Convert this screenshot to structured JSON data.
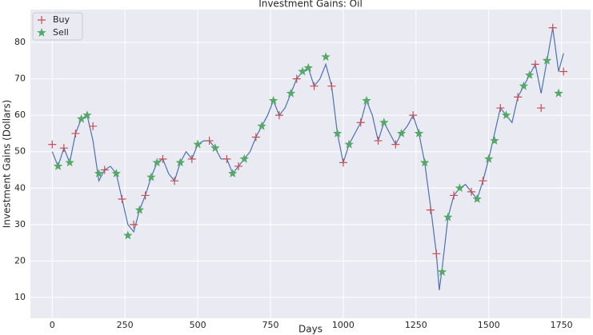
{
  "chart_data": {
    "type": "line",
    "title": "Investment Gains:  Oil",
    "x_label": "Days",
    "y_label": "Investment Gains (Dollars)",
    "line": {
      "color": "#4c72b0",
      "x": [
        0,
        20,
        40,
        60,
        80,
        100,
        120,
        140,
        160,
        180,
        200,
        220,
        240,
        260,
        280,
        300,
        320,
        340,
        360,
        380,
        400,
        420,
        440,
        460,
        480,
        500,
        520,
        540,
        560,
        580,
        600,
        620,
        640,
        660,
        680,
        700,
        720,
        740,
        760,
        780,
        800,
        820,
        840,
        860,
        880,
        900,
        920,
        940,
        960,
        980,
        1000,
        1020,
        1040,
        1060,
        1080,
        1100,
        1120,
        1140,
        1160,
        1180,
        1200,
        1220,
        1240,
        1260,
        1280,
        1300,
        1320,
        1330,
        1340,
        1360,
        1380,
        1400,
        1420,
        1440,
        1460,
        1480,
        1500,
        1520,
        1540,
        1560,
        1580,
        1600,
        1620,
        1640,
        1660,
        1680,
        1700,
        1720,
        1740,
        1757
      ],
      "values": [
        50,
        46,
        51,
        47,
        55,
        59,
        60,
        53,
        42,
        45,
        46,
        44,
        37,
        30,
        28,
        34,
        38,
        43,
        47,
        48,
        44,
        42,
        47,
        50,
        48,
        52,
        53,
        53,
        51,
        48,
        48,
        44,
        46,
        48,
        50,
        54,
        57,
        60,
        64,
        60,
        62,
        66,
        70,
        72,
        73,
        68,
        70,
        74,
        68,
        55,
        47,
        52,
        55,
        58,
        64,
        60,
        53,
        58,
        55,
        52,
        55,
        57,
        60,
        55,
        47,
        35,
        22,
        12,
        18,
        32,
        38,
        40,
        41,
        39,
        37,
        42,
        48,
        55,
        62,
        60,
        58,
        65,
        68,
        71,
        74,
        66,
        75,
        84,
        72,
        77
      ]
    },
    "series": [
      {
        "name": "Buy",
        "color": "#c44e52",
        "marker": "plus",
        "x": [
          0,
          40,
          80,
          140,
          180,
          240,
          280,
          320,
          380,
          420,
          480,
          540,
          600,
          640,
          700,
          780,
          840,
          900,
          960,
          1000,
          1060,
          1120,
          1180,
          1240,
          1300,
          1320,
          1380,
          1440,
          1480,
          1540,
          1600,
          1660,
          1680,
          1720,
          1757
        ],
        "values": [
          52,
          51,
          55,
          57,
          45,
          37,
          30,
          38,
          48,
          42,
          48,
          53,
          48,
          46,
          54,
          60,
          70,
          68,
          68,
          47,
          58,
          53,
          52,
          60,
          34,
          22,
          38,
          39,
          42,
          62,
          65,
          74,
          62,
          84,
          72
        ]
      },
      {
        "name": "Sell",
        "color": "#55a868",
        "marker": "star",
        "x": [
          20,
          60,
          100,
          120,
          160,
          220,
          260,
          300,
          340,
          360,
          440,
          500,
          560,
          620,
          660,
          720,
          760,
          820,
          860,
          880,
          940,
          980,
          1020,
          1080,
          1140,
          1200,
          1260,
          1280,
          1340,
          1360,
          1400,
          1460,
          1500,
          1520,
          1560,
          1620,
          1640,
          1700,
          1740
        ],
        "values": [
          46,
          47,
          59,
          60,
          44,
          44,
          27,
          34,
          43,
          47,
          47,
          52,
          51,
          44,
          48,
          57,
          64,
          66,
          72,
          73,
          76,
          55,
          52,
          64,
          58,
          55,
          55,
          47,
          17,
          32,
          40,
          37,
          48,
          53,
          60,
          68,
          71,
          75,
          66
        ]
      }
    ],
    "xlim": [
      -75,
      1850
    ],
    "ylim": [
      4.3,
      89
    ],
    "xticks": [
      0,
      250,
      500,
      750,
      1000,
      1250,
      1500,
      1750
    ],
    "yticks": [
      10,
      20,
      30,
      40,
      50,
      60,
      70,
      80
    ],
    "grid": true,
    "legend": "upper left"
  }
}
